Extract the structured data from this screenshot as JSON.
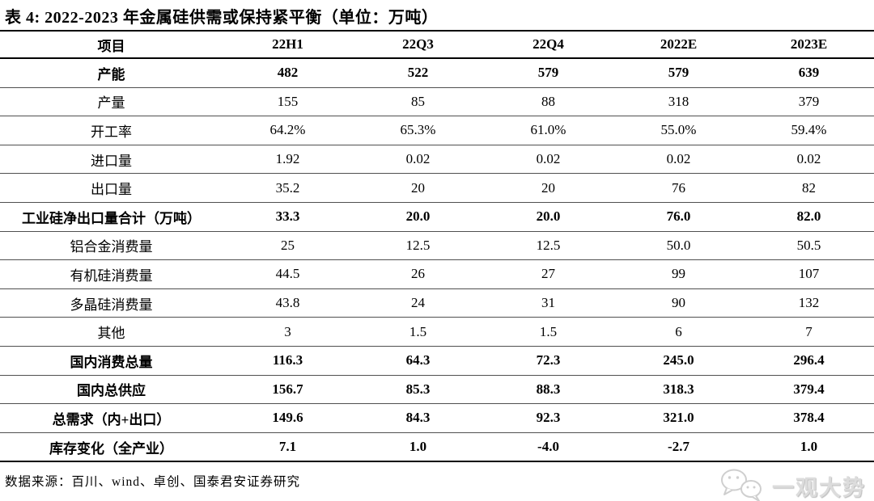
{
  "title": "表 4: 2022-2023 年金属硅供需或保持紧平衡（单位：万吨）",
  "table": {
    "columns": [
      "项目",
      "22H1",
      "22Q3",
      "22Q4",
      "2022E",
      "2023E"
    ],
    "rows": [
      {
        "label": "产能",
        "values": [
          "482",
          "522",
          "579",
          "579",
          "639"
        ],
        "bold": true
      },
      {
        "label": "产量",
        "values": [
          "155",
          "85",
          "88",
          "318",
          "379"
        ],
        "bold": false
      },
      {
        "label": "开工率",
        "values": [
          "64.2%",
          "65.3%",
          "61.0%",
          "55.0%",
          "59.4%"
        ],
        "bold": false
      },
      {
        "label": "进口量",
        "values": [
          "1.92",
          "0.02",
          "0.02",
          "0.02",
          "0.02"
        ],
        "bold": false
      },
      {
        "label": "出口量",
        "values": [
          "35.2",
          "20",
          "20",
          "76",
          "82"
        ],
        "bold": false
      },
      {
        "label": "工业硅净出口量合计（万吨）",
        "values": [
          "33.3",
          "20.0",
          "20.0",
          "76.0",
          "82.0"
        ],
        "bold": true
      },
      {
        "label": "铝合金消费量",
        "values": [
          "25",
          "12.5",
          "12.5",
          "50.0",
          "50.5"
        ],
        "bold": false
      },
      {
        "label": "有机硅消费量",
        "values": [
          "44.5",
          "26",
          "27",
          "99",
          "107"
        ],
        "bold": false
      },
      {
        "label": "多晶硅消费量",
        "values": [
          "43.8",
          "24",
          "31",
          "90",
          "132"
        ],
        "bold": false
      },
      {
        "label": "其他",
        "values": [
          "3",
          "1.5",
          "1.5",
          "6",
          "7"
        ],
        "bold": false
      },
      {
        "label": "国内消费总量",
        "values": [
          "116.3",
          "64.3",
          "72.3",
          "245.0",
          "296.4"
        ],
        "bold": true
      },
      {
        "label": "国内总供应",
        "values": [
          "156.7",
          "85.3",
          "88.3",
          "318.3",
          "379.4"
        ],
        "bold": true
      },
      {
        "label": "总需求（内+出口）",
        "values": [
          "149.6",
          "84.3",
          "92.3",
          "321.0",
          "378.4"
        ],
        "bold": true
      },
      {
        "label": "库存变化（全产业）",
        "values": [
          "7.1",
          "1.0",
          "-4.0",
          "-2.7",
          "1.0"
        ],
        "bold": true
      }
    ]
  },
  "footer": {
    "source": "数据来源：百川、wind、卓创、国泰君安证券研究",
    "logo_text": "一观大势"
  },
  "colors": {
    "text": "#000000",
    "thick_rule": "#000000",
    "row_rule": "#4f4f4f",
    "watermark": "#dcdcdc",
    "background": "#ffffff"
  }
}
